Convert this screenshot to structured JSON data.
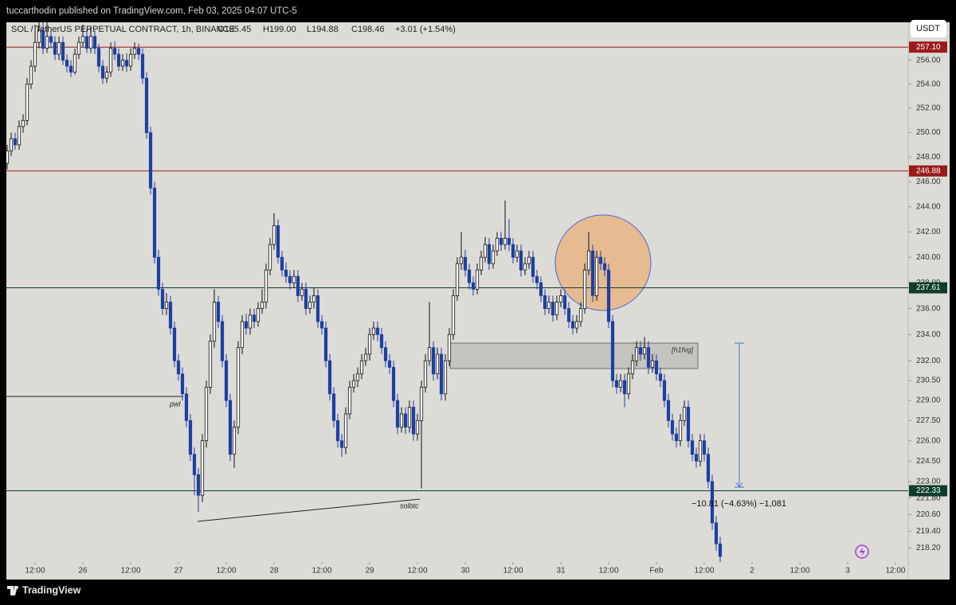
{
  "header": {
    "published": "tuccarthodin published on TradingView.com, Feb 03, 2025 04:07 UTC-5",
    "symbol": "SOL / TetherUS PERPETUAL CONTRACT, 1h, BINANCE",
    "open": "O195.45",
    "high": "H199.00",
    "low": "L194.88",
    "close": "C198.46",
    "change": "+3.01 (+1.54%)",
    "currency": "USDT",
    "brand": "TradingView"
  },
  "chart_data": {
    "type": "candlestick",
    "log_scale": true,
    "grid": false,
    "up_color": "#ffffff",
    "down_color": "#1f3fa3",
    "xlim": [
      3.2,
      231.2
    ],
    "ylim": [
      217.2,
      259.2
    ],
    "xticks": [
      {
        "value": 12,
        "label": "12:00"
      },
      {
        "value": 24,
        "label": "26"
      },
      {
        "value": 36,
        "label": "12:00"
      },
      {
        "value": 48,
        "label": "27"
      },
      {
        "value": 60,
        "label": "12:00"
      },
      {
        "value": 72,
        "label": "28"
      },
      {
        "value": 84,
        "label": "12:00"
      },
      {
        "value": 96,
        "label": "29"
      },
      {
        "value": 108,
        "label": "12:00"
      },
      {
        "value": 120,
        "label": "30"
      },
      {
        "value": 132,
        "label": "12:00"
      },
      {
        "value": 144,
        "label": "31"
      },
      {
        "value": 156,
        "label": "12:00"
      },
      {
        "value": 168,
        "label": "Feb"
      },
      {
        "value": 180,
        "label": "12:00"
      },
      {
        "value": 192,
        "label": "2"
      },
      {
        "value": 204,
        "label": "12:00"
      },
      {
        "value": 216,
        "label": "3"
      },
      {
        "value": 228,
        "label": "12:00"
      }
    ],
    "yticks": [
      {
        "value": 256,
        "label": "256.00"
      },
      {
        "value": 254,
        "label": "254.00"
      },
      {
        "value": 252,
        "label": "252.00"
      },
      {
        "value": 250,
        "label": "250.00"
      },
      {
        "value": 248,
        "label": "248.00"
      },
      {
        "value": 246,
        "label": "246.00"
      },
      {
        "value": 244,
        "label": "244.00"
      },
      {
        "value": 242,
        "label": "242.00"
      },
      {
        "value": 240,
        "label": "240.00"
      },
      {
        "value": 238,
        "label": "238.00"
      },
      {
        "value": 236,
        "label": "236.00"
      },
      {
        "value": 234,
        "label": "234.00"
      },
      {
        "value": 232,
        "label": "232.00"
      },
      {
        "value": 230.5,
        "label": "230.50"
      },
      {
        "value": 229,
        "label": "229.00"
      },
      {
        "value": 227.5,
        "label": "227.50"
      },
      {
        "value": 226,
        "label": "226.00"
      },
      {
        "value": 224.5,
        "label": "224.50"
      },
      {
        "value": 223,
        "label": "223.00"
      },
      {
        "value": 221.8,
        "label": "221.80"
      },
      {
        "value": 220.6,
        "label": "220.60"
      },
      {
        "value": 219.4,
        "label": "219.40"
      },
      {
        "value": 218.2,
        "label": "218.20"
      }
    ],
    "levels": [
      {
        "value": 257.1,
        "label": "257.10",
        "color": "#9a1b1b"
      },
      {
        "value": 246.88,
        "label": "246.88",
        "color": "#9a1b1b"
      },
      {
        "value": 237.61,
        "label": "237.61",
        "color": "#0f3d2b"
      },
      {
        "value": 222.33,
        "label": "222.33",
        "color": "#0f3d2b"
      }
    ],
    "annotations": {
      "pwl": "pwl",
      "fvg": "[h1fvg]",
      "trend": "solbtc",
      "measure": "−10.81 (−4.63%) −1,081"
    },
    "x": [
      5,
      6,
      7,
      8,
      9,
      10,
      11,
      12,
      13,
      14,
      15,
      16,
      17,
      18,
      19,
      20,
      21,
      22,
      23,
      24,
      25,
      26,
      27,
      28,
      29,
      30,
      31,
      32,
      33,
      34,
      35,
      36,
      37,
      38,
      39,
      40,
      41,
      42,
      43,
      44,
      45,
      46,
      47,
      48,
      49,
      50,
      51,
      52,
      53,
      54,
      55,
      56,
      57,
      58,
      59,
      60,
      61,
      62,
      63,
      64,
      65,
      66,
      67,
      68,
      69,
      70,
      71,
      72,
      73,
      74,
      75,
      76,
      77,
      78,
      79,
      80,
      81,
      82,
      83,
      84,
      85,
      86,
      87,
      88,
      89,
      90,
      91,
      92,
      93,
      94,
      95,
      96,
      97,
      98,
      99,
      100,
      101,
      102,
      103,
      104,
      105,
      106,
      107,
      108,
      109,
      110,
      111,
      112,
      113,
      114,
      115,
      116,
      117,
      118,
      119,
      120,
      121,
      122,
      123,
      124,
      125,
      126,
      127,
      128,
      129,
      130,
      131,
      132,
      133,
      134,
      135,
      136,
      137,
      138,
      139,
      140,
      141,
      142,
      143,
      144,
      145,
      146,
      147,
      148,
      149,
      150,
      151,
      152,
      153,
      154,
      155,
      156,
      157,
      158,
      159,
      160,
      161,
      162,
      163,
      164,
      165,
      166,
      167,
      168,
      169,
      170,
      171,
      172,
      173,
      174,
      175,
      176,
      177,
      178,
      179,
      180,
      181,
      182,
      183,
      184
    ],
    "ohlc": [
      [
        247.5,
        249,
        247,
        248.5
      ],
      [
        248.5,
        250,
        248.1,
        249.5
      ],
      [
        249.5,
        250,
        248.6,
        249
      ],
      [
        249,
        251,
        248.6,
        250.5
      ],
      [
        250.5,
        251.5,
        250,
        251
      ],
      [
        251,
        254.5,
        250.6,
        254
      ],
      [
        254,
        256,
        253.6,
        255.5
      ],
      [
        255.5,
        259,
        255,
        257.5
      ],
      [
        257.5,
        259.5,
        257,
        258.5
      ],
      [
        258.5,
        259.5,
        256.5,
        257
      ],
      [
        257,
        259.3,
        256.6,
        258
      ],
      [
        258,
        258.6,
        257,
        257.5
      ],
      [
        257.5,
        258,
        256,
        256.5
      ],
      [
        256.5,
        258,
        256,
        257.5
      ],
      [
        257.5,
        258,
        255.6,
        256
      ],
      [
        256,
        256.5,
        255,
        255.5
      ],
      [
        255.5,
        256,
        254.6,
        255
      ],
      [
        255,
        257,
        254.8,
        256.5
      ],
      [
        256.5,
        258,
        256.1,
        257.5
      ],
      [
        257.5,
        259,
        257.1,
        258
      ],
      [
        258,
        258.6,
        256.6,
        257
      ],
      [
        257,
        258.8,
        256.6,
        258
      ],
      [
        258,
        258.5,
        256.5,
        257
      ],
      [
        257,
        257.4,
        255,
        255.5
      ],
      [
        255.5,
        256,
        254,
        254.5
      ],
      [
        254.5,
        255.5,
        254.1,
        255
      ],
      [
        255,
        257.5,
        254.6,
        257
      ],
      [
        257,
        257.6,
        256,
        256.5
      ],
      [
        256.5,
        257,
        255.1,
        255.5
      ],
      [
        255.5,
        256.5,
        255.1,
        256
      ],
      [
        256,
        256.6,
        255,
        255.5
      ],
      [
        255.5,
        257,
        255.1,
        256.5
      ],
      [
        256.5,
        257.5,
        256.1,
        257
      ],
      [
        257,
        257.4,
        256,
        256.5
      ],
      [
        256.5,
        257,
        254,
        254.5
      ],
      [
        254.5,
        255,
        249.5,
        250
      ],
      [
        250,
        250.5,
        245,
        245.5
      ],
      [
        245.5,
        246,
        239.5,
        240
      ],
      [
        240,
        240.6,
        237,
        237.5
      ],
      [
        237.5,
        238,
        235.5,
        236
      ],
      [
        236,
        237.2,
        235.5,
        236.5
      ],
      [
        236.5,
        237,
        234,
        234.5
      ],
      [
        234.5,
        235,
        231.5,
        232
      ],
      [
        232,
        232.5,
        230.5,
        231
      ],
      [
        231,
        231.5,
        229,
        229.5
      ],
      [
        229.5,
        230,
        227,
        227.5
      ],
      [
        227.5,
        228,
        224.5,
        225
      ],
      [
        225,
        225.5,
        222,
        223.5
      ],
      [
        223.5,
        224,
        220.8,
        222
      ],
      [
        222,
        226.5,
        221.5,
        226
      ],
      [
        226,
        230.5,
        225.5,
        230
      ],
      [
        230,
        234,
        229.5,
        233.5
      ],
      [
        233.5,
        237.5,
        233,
        236.5
      ],
      [
        236.5,
        237,
        234.5,
        235
      ],
      [
        235,
        235.5,
        231.5,
        232
      ],
      [
        232,
        232.5,
        228.5,
        229
      ],
      [
        229,
        229.5,
        224.5,
        225
      ],
      [
        225,
        227.5,
        224,
        227
      ],
      [
        227,
        233.5,
        226.5,
        233
      ],
      [
        233,
        235.5,
        232.5,
        235
      ],
      [
        235,
        235.6,
        234,
        234.5
      ],
      [
        234.5,
        236,
        234,
        235.5
      ],
      [
        235.5,
        236,
        234.5,
        235
      ],
      [
        235,
        236.5,
        234.6,
        236
      ],
      [
        236,
        237.5,
        235.6,
        236.5
      ],
      [
        236.5,
        239.5,
        236,
        239
      ],
      [
        239,
        241.5,
        238.6,
        241
      ],
      [
        241,
        243.5,
        240.6,
        242.5
      ],
      [
        242.5,
        243,
        239.5,
        240
      ],
      [
        240,
        240.5,
        238.5,
        239
      ],
      [
        239,
        239.6,
        238,
        238.5
      ],
      [
        238.5,
        239,
        237.5,
        238
      ],
      [
        238,
        239,
        237.6,
        238.5
      ],
      [
        238.5,
        239,
        236.5,
        237
      ],
      [
        237,
        238,
        236.6,
        237.5
      ],
      [
        237.5,
        238,
        235.5,
        236
      ],
      [
        236,
        237,
        235.6,
        236.5
      ],
      [
        236.5,
        237.6,
        236,
        237
      ],
      [
        237,
        237.5,
        234.5,
        235
      ],
      [
        235,
        235.5,
        234,
        234.5
      ],
      [
        234.5,
        235,
        231.5,
        232
      ],
      [
        232,
        232.5,
        229,
        229.5
      ],
      [
        229.5,
        230,
        227,
        227.5
      ],
      [
        227.5,
        228,
        225.5,
        226
      ],
      [
        226,
        226.5,
        224.8,
        225.5
      ],
      [
        225.5,
        228.5,
        225,
        228
      ],
      [
        228,
        230.5,
        227.6,
        230
      ],
      [
        230,
        231,
        229.6,
        230.5
      ],
      [
        230.5,
        231.5,
        230,
        231
      ],
      [
        231,
        232.5,
        230.6,
        232
      ],
      [
        232,
        233,
        231.6,
        232.5
      ],
      [
        232.5,
        234.5,
        232,
        234
      ],
      [
        234,
        235,
        233.6,
        234.5
      ],
      [
        234.5,
        235,
        233.5,
        234
      ],
      [
        234,
        234.5,
        232.5,
        233
      ],
      [
        233,
        233.5,
        231.5,
        232
      ],
      [
        232,
        232.5,
        231,
        231.5
      ],
      [
        231.5,
        232,
        228.5,
        229
      ],
      [
        229,
        229.5,
        226.5,
        227
      ],
      [
        227,
        228.5,
        226.6,
        228
      ],
      [
        228,
        228.5,
        226.5,
        227
      ],
      [
        227,
        229,
        226.6,
        228.5
      ],
      [
        228.5,
        229,
        226,
        226.5
      ],
      [
        226.5,
        228,
        226,
        227.5
      ],
      [
        227.5,
        230.5,
        222.5,
        230
      ],
      [
        230,
        232.5,
        229.6,
        232
      ],
      [
        232,
        236.5,
        231.6,
        233
      ],
      [
        233,
        233.5,
        230.5,
        231
      ],
      [
        231,
        233,
        230.6,
        232.5
      ],
      [
        232.5,
        233,
        229,
        229.5
      ],
      [
        229.5,
        232.5,
        229,
        232
      ],
      [
        232,
        234.5,
        231.6,
        234
      ],
      [
        234,
        237.5,
        233.6,
        237
      ],
      [
        237,
        240,
        236.6,
        239.5
      ],
      [
        239.5,
        242,
        239,
        240
      ],
      [
        240,
        240.6,
        238.5,
        239
      ],
      [
        239,
        239.5,
        237.5,
        238
      ],
      [
        238,
        238.5,
        237,
        237.5
      ],
      [
        237.5,
        239.5,
        237.1,
        239
      ],
      [
        239,
        240.5,
        238.6,
        240
      ],
      [
        240,
        241.6,
        239.6,
        241
      ],
      [
        241,
        241.5,
        239,
        239.5
      ],
      [
        239.5,
        241,
        239.1,
        240.5
      ],
      [
        240.5,
        242,
        240.1,
        241.5
      ],
      [
        241.5,
        242,
        240.5,
        241
      ],
      [
        241,
        244.5,
        240.6,
        241.5
      ],
      [
        241.5,
        243,
        240.5,
        241
      ],
      [
        241,
        241.5,
        239.5,
        240
      ],
      [
        240,
        241,
        239.6,
        240.5
      ],
      [
        240.5,
        241,
        238.5,
        239
      ],
      [
        239,
        240,
        238.6,
        239.5
      ],
      [
        239.5,
        240.5,
        239.1,
        240
      ],
      [
        240,
        240.5,
        238,
        238.5
      ],
      [
        238.5,
        239,
        237.5,
        238
      ],
      [
        238,
        238.5,
        236.5,
        237
      ],
      [
        237,
        237.5,
        235.5,
        236
      ],
      [
        236,
        237,
        235.6,
        236.5
      ],
      [
        236.5,
        237,
        235,
        235.5
      ],
      [
        235.5,
        237,
        235.1,
        236.5
      ],
      [
        236.5,
        237.5,
        236.1,
        237
      ],
      [
        237,
        237.5,
        235.5,
        236
      ],
      [
        236,
        236.5,
        234.5,
        235
      ],
      [
        235,
        235.5,
        234,
        234.5
      ],
      [
        234.5,
        235.5,
        234.1,
        235
      ],
      [
        235,
        236.5,
        234.6,
        236
      ],
      [
        236,
        239.5,
        235.6,
        239
      ],
      [
        239,
        242,
        238.6,
        240.5
      ],
      [
        240.5,
        241,
        236.5,
        237
      ],
      [
        237,
        240.5,
        236.6,
        240
      ],
      [
        240,
        240.5,
        239,
        239.5
      ],
      [
        239.5,
        240,
        238.5,
        239
      ],
      [
        239,
        239.5,
        234.5,
        235
      ],
      [
        235,
        235.5,
        230,
        230.5
      ],
      [
        230.5,
        231,
        229.5,
        230
      ],
      [
        230,
        231,
        229.6,
        230.5
      ],
      [
        230.5,
        231,
        228.5,
        229.5
      ],
      [
        229.5,
        231.5,
        229.1,
        231
      ],
      [
        231,
        232.5,
        230.6,
        232
      ],
      [
        232,
        233.5,
        231.6,
        233
      ],
      [
        233,
        233.5,
        232,
        232.5
      ],
      [
        232.5,
        233.8,
        232.1,
        233
      ],
      [
        233,
        233.5,
        231,
        231.5
      ],
      [
        231.5,
        232.5,
        231.1,
        232
      ],
      [
        232,
        232.5,
        230.5,
        231
      ],
      [
        231,
        231.5,
        230,
        230.5
      ],
      [
        230.5,
        231,
        228.5,
        229
      ],
      [
        229,
        229.5,
        227,
        227.5
      ],
      [
        227.5,
        228,
        226,
        226.5
      ],
      [
        226.5,
        227,
        225.5,
        226
      ],
      [
        226,
        228,
        225.6,
        227.5
      ],
      [
        227.5,
        229,
        227.1,
        228.5
      ],
      [
        228.5,
        229,
        225.5,
        226
      ],
      [
        226,
        226.5,
        224.5,
        225
      ],
      [
        225,
        225.5,
        224,
        224.5
      ],
      [
        224.5,
        226.5,
        224.1,
        226
      ],
      [
        226,
        226.5,
        224.5,
        225
      ],
      [
        225,
        225.5,
        222.5,
        223
      ],
      [
        223,
        223.5,
        219.5,
        220
      ],
      [
        220,
        220.5,
        218,
        218.5
      ],
      [
        218.5,
        219,
        217.2,
        217.6
      ]
    ]
  }
}
